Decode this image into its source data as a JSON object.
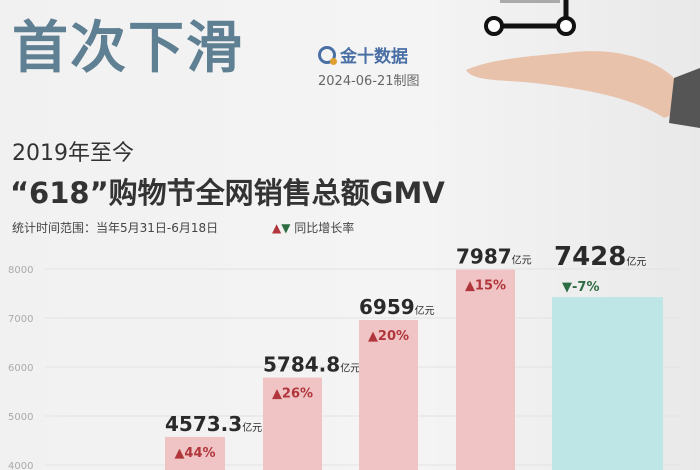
{
  "header": {
    "headline": "首次下滑",
    "brand": "金十数据",
    "date": "2024-06-21制图",
    "subtitle": "2019年至今",
    "title": "“618”购物节全网销售总额GMV",
    "range": "统计时间范围：当年5月31日-6月18日",
    "legend": "同比增长率",
    "legend_up": "▲",
    "legend_down": "▼"
  },
  "colors": {
    "headline": "#5f7f93",
    "bar": "#f0c4c4",
    "bar_last": "#bfe6e6",
    "up": "#b0363c",
    "down": "#2e6d44"
  },
  "chart_data": {
    "type": "bar",
    "title": "“618”购物节全网销售总额GMV",
    "unit": "亿元",
    "ylim": [
      4000,
      8000
    ],
    "yticks": [
      4000,
      5000,
      6000,
      7000,
      8000
    ],
    "grid": true,
    "values": [
      4573.3,
      5784.8,
      6959,
      7987,
      7428
    ],
    "value_labels": [
      "4573.3",
      "5784.8",
      "6959",
      "7987",
      "7428"
    ],
    "growth_labels": [
      "▲44%",
      "▲26%",
      "▲20%",
      "▲15%",
      "▼-7%"
    ],
    "growth": [
      44,
      26,
      20,
      15,
      -7
    ]
  }
}
